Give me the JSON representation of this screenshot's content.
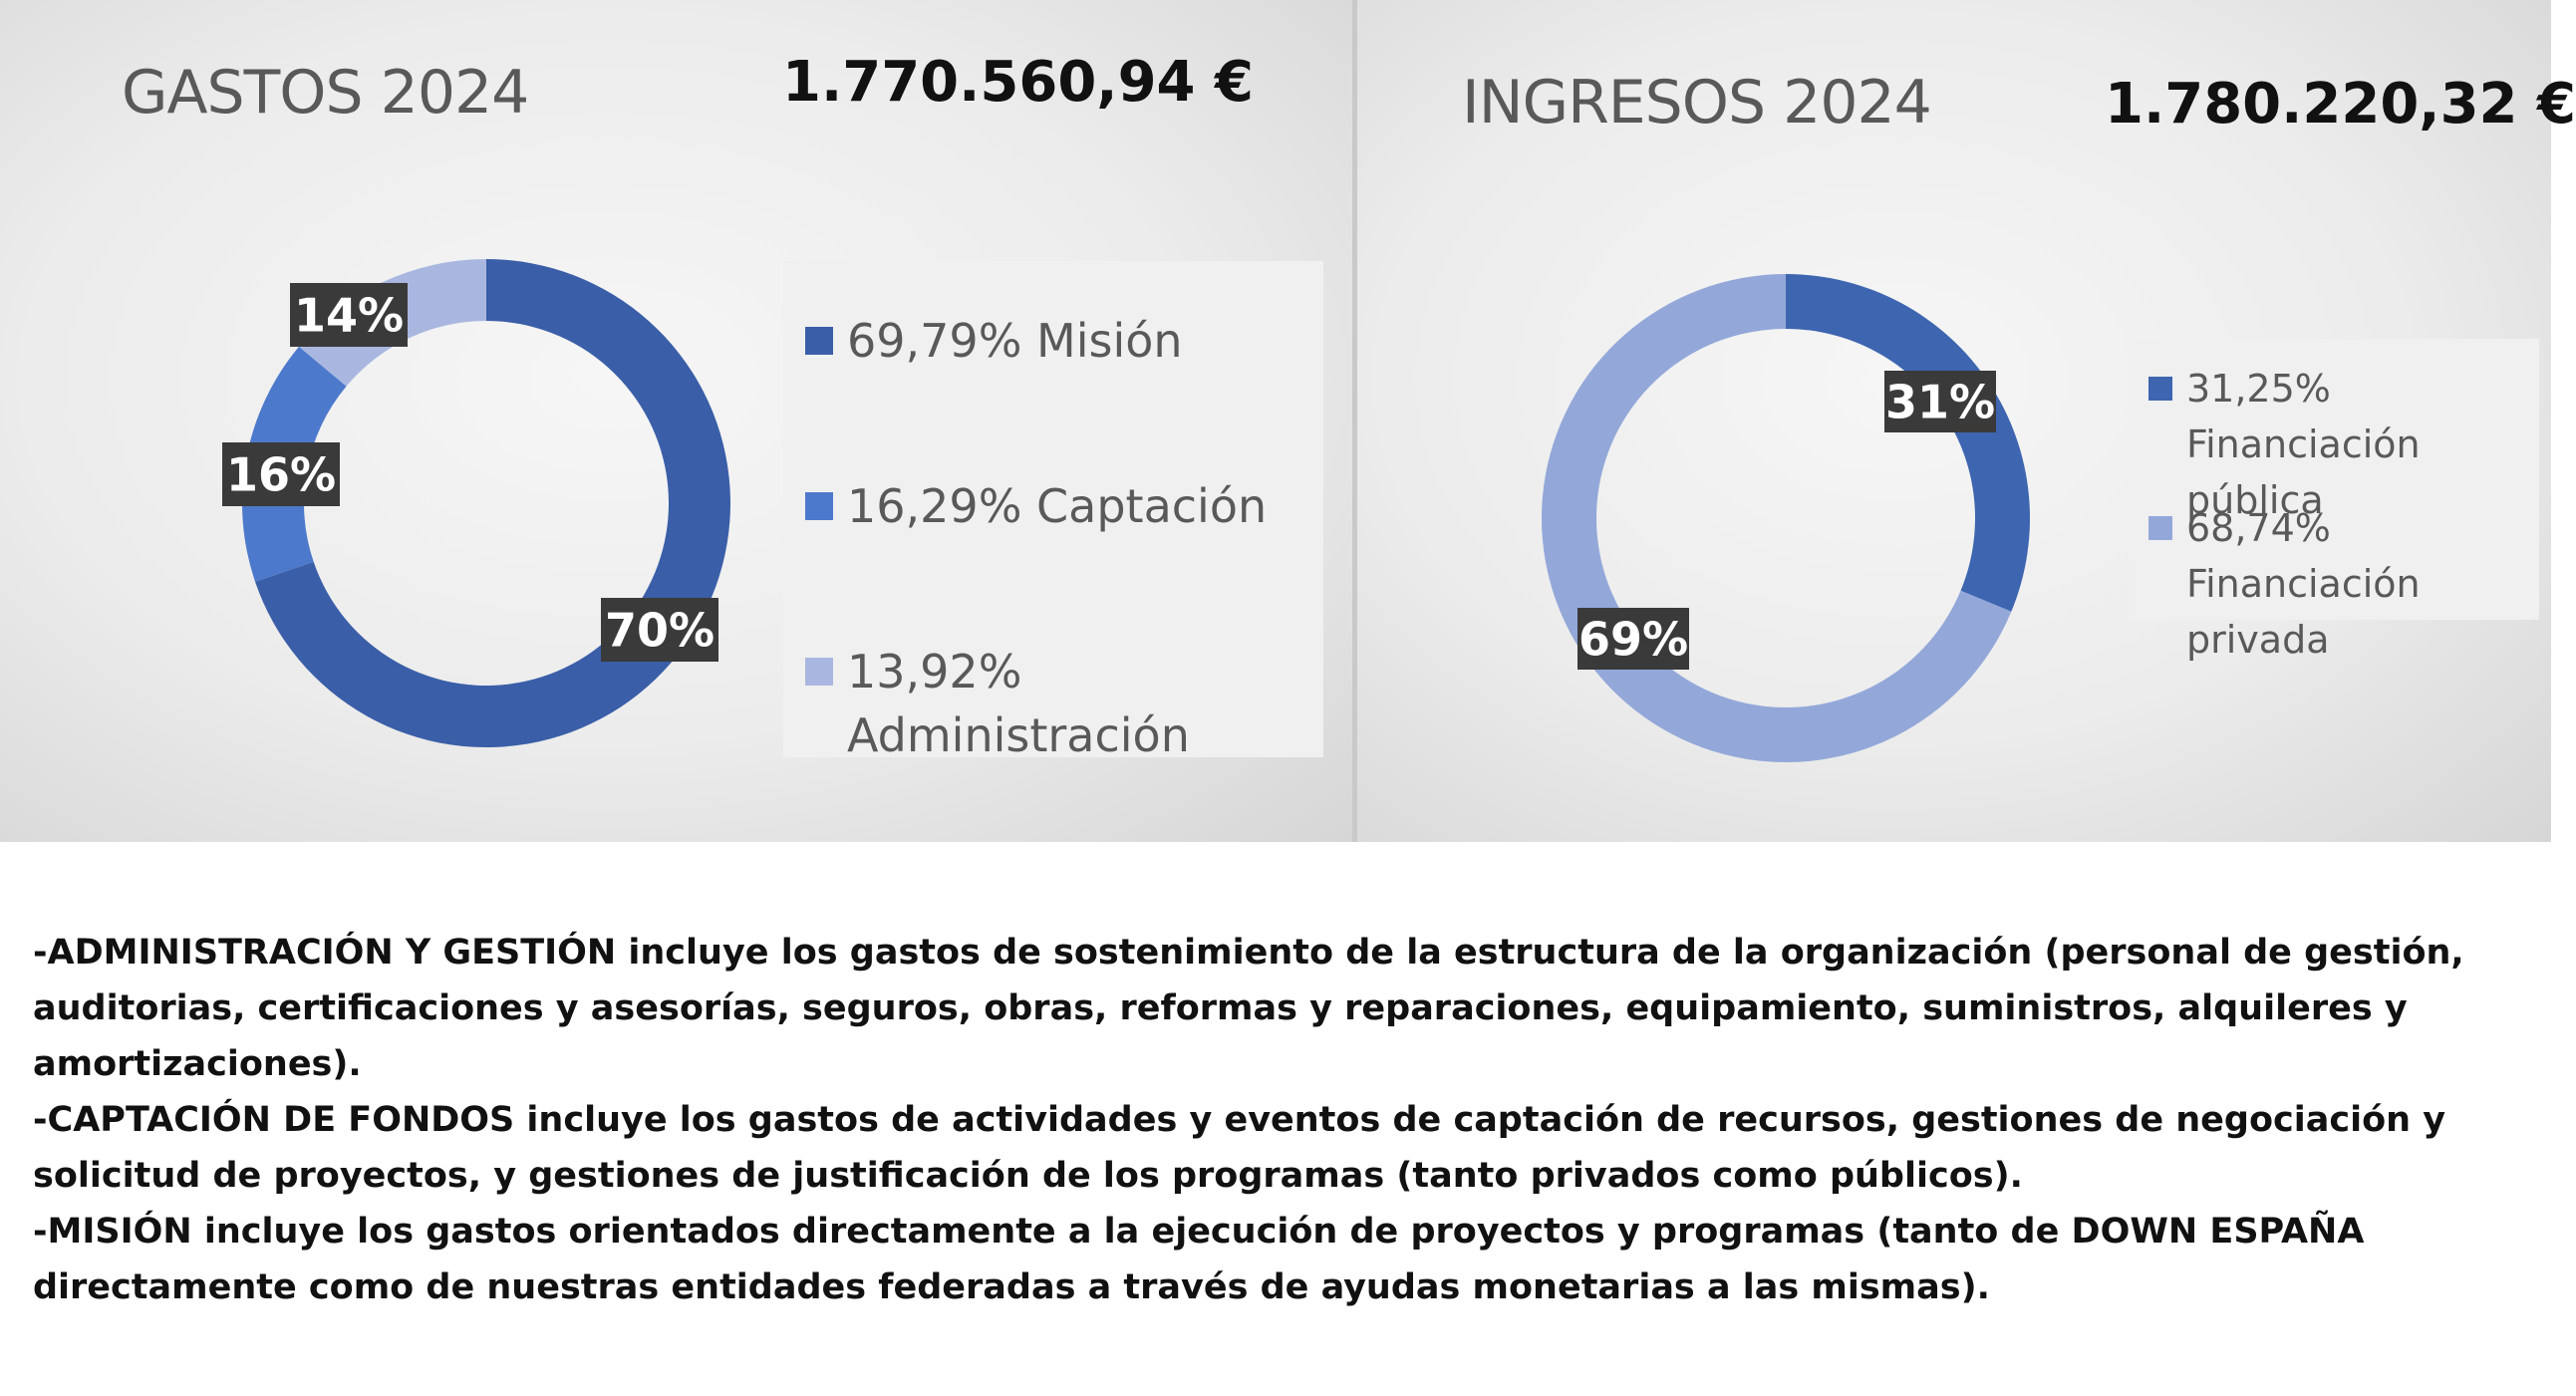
{
  "chart_data": [
    {
      "type": "pie",
      "title": "GASTOS 2024",
      "total": "1.770.560,94 €",
      "categories": [
        "Misión",
        "Captación",
        "Administración"
      ],
      "values": [
        69.79,
        16.29,
        13.92
      ],
      "data_labels": [
        "70%",
        "16%",
        "14%"
      ],
      "legend": [
        "69,79% Misión",
        "16,29% Captación",
        "13,92% Administración"
      ],
      "legend_lines": [
        [
          "69,79% Misión"
        ],
        [
          "16,29% Captación"
        ],
        [
          "13,92%",
          "Administración"
        ]
      ],
      "colors": [
        "#3a5ea8",
        "#4d79cc",
        "#a9b7e0"
      ],
      "legend_position": "right",
      "donut": true
    },
    {
      "type": "pie",
      "title": "INGRESOS 2024",
      "total": "1.780.220,32 €",
      "categories": [
        "Financiación pública",
        "Financiación privada"
      ],
      "values": [
        31.25,
        68.74
      ],
      "data_labels": [
        "31%",
        "69%"
      ],
      "legend": [
        "31,25% Financiación pública",
        "68,74% Financiación privada"
      ],
      "legend_lines": [
        [
          "31,25% Financiación",
          "pública"
        ],
        [
          "68,74% Financiación",
          "privada"
        ]
      ],
      "colors": [
        "#3d65b0",
        "#93a8d9"
      ],
      "legend_position": "right",
      "donut": true
    }
  ],
  "notes": [
    "-ADMINISTRACIÓN Y GESTIÓN incluye los gastos de sostenimiento de la estructura de la organización (personal de gestión, auditorias, certificaciones y asesorías, seguros, obras, reformas y reparaciones, equipamiento, suministros, alquileres y amortizaciones).",
    "-CAPTACIÓN DE FONDOS incluye los gastos de actividades y eventos de captación de recursos, gestiones de negociación y solicitud de proyectos, y gestiones de justificación de los programas (tanto privados como públicos).",
    "-MISIÓN incluye los gastos orientados directamente a la ejecución de proyectos y programas (tanto de DOWN ESPAÑA directamente como de nuestras entidades federadas a través de ayudas monetarias a las mismas)."
  ]
}
